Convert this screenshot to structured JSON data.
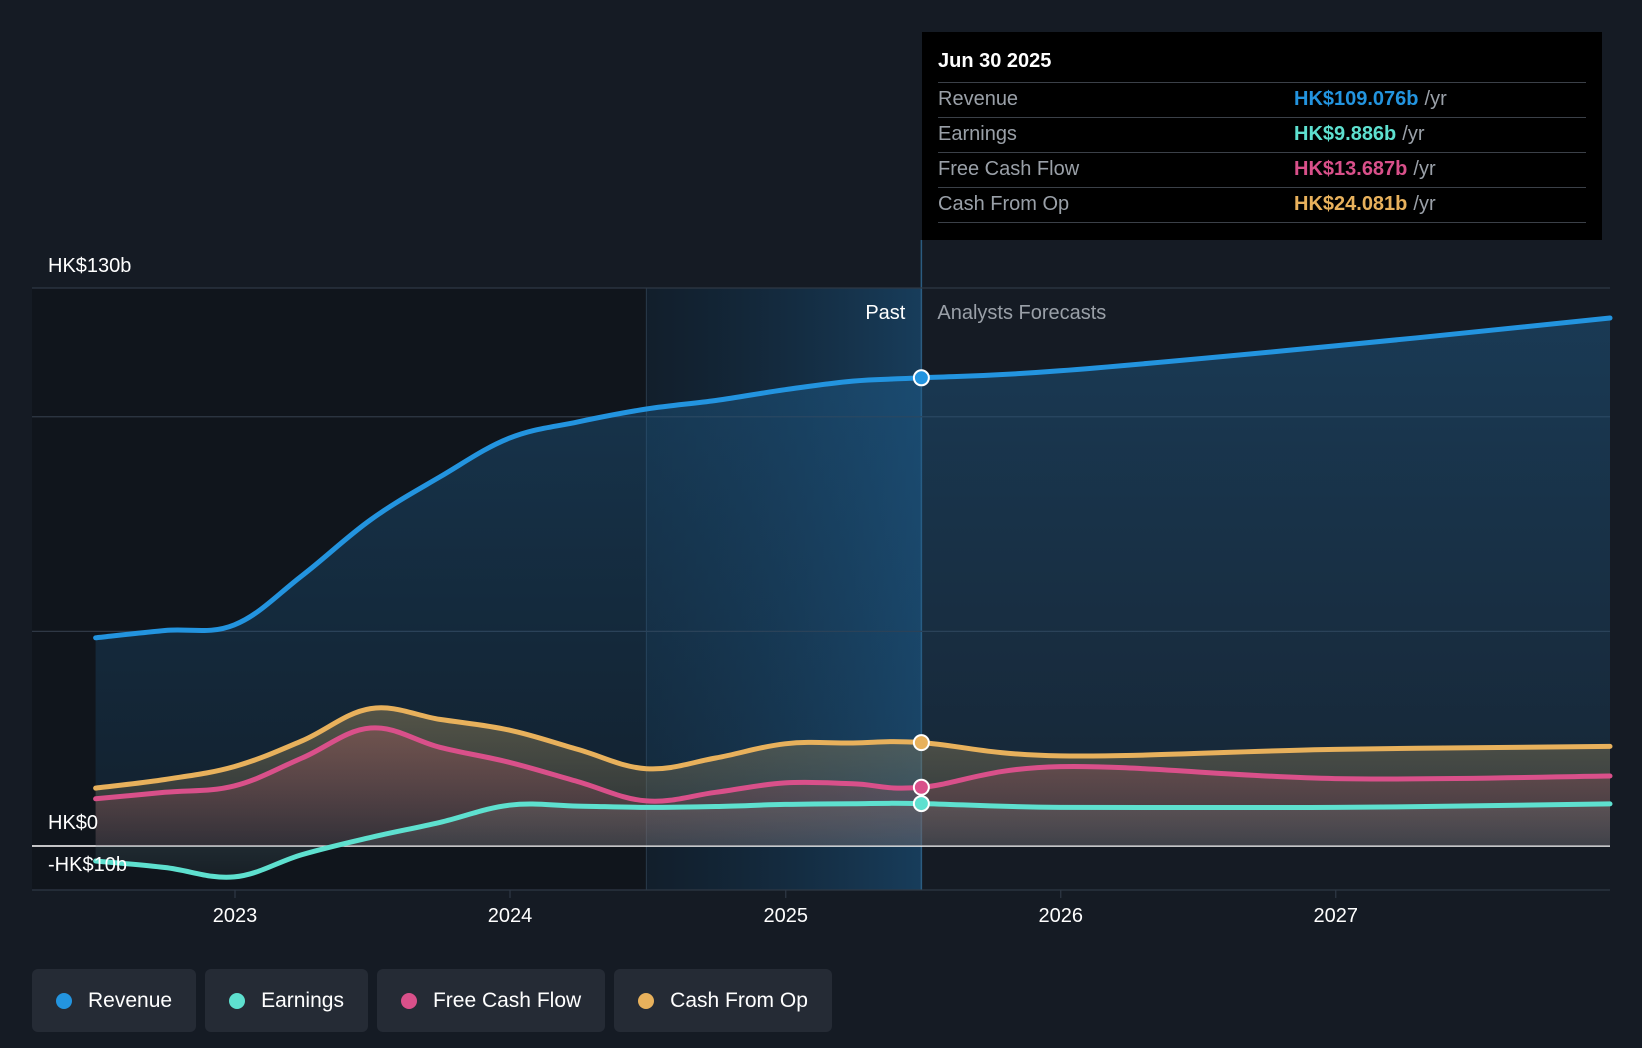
{
  "chart_data": {
    "type": "line",
    "y_unit_labels": {
      "top": "HK$130b",
      "zero": "HK$0",
      "bottom": "-HK$10b"
    },
    "ylim": [
      -10,
      130
    ],
    "x_ticks": [
      "2023",
      "2024",
      "2025",
      "2026",
      "2027"
    ],
    "past_label": "Past",
    "forecast_label": "Analysts Forecasts",
    "past_end_date": "2025-06-30",
    "series": [
      {
        "name": "Revenue",
        "color": "#2394df",
        "points": [
          [
            "2022-06-30",
            48.5
          ],
          [
            "2022-09-30",
            50.2
          ],
          [
            "2022-12-31",
            51.5
          ],
          [
            "2023-03-31",
            63.0
          ],
          [
            "2023-06-30",
            76.0
          ],
          [
            "2023-09-30",
            86.0
          ],
          [
            "2023-12-31",
            95.0
          ],
          [
            "2024-03-31",
            98.8
          ],
          [
            "2024-06-30",
            101.8
          ],
          [
            "2024-09-30",
            103.8
          ],
          [
            "2024-12-31",
            106.3
          ],
          [
            "2025-03-31",
            108.3
          ],
          [
            "2025-06-30",
            109.076
          ],
          [
            "2025-12-31",
            110.7
          ],
          [
            "2026-12-31",
            116.5
          ],
          [
            "2027-12-31",
            123.0
          ]
        ]
      },
      {
        "name": "Earnings",
        "color": "#5ee0cf",
        "points": [
          [
            "2022-06-30",
            -3.5
          ],
          [
            "2022-09-30",
            -5.0
          ],
          [
            "2022-12-31",
            -7.2
          ],
          [
            "2023-03-31",
            -2.0
          ],
          [
            "2023-06-30",
            2.0
          ],
          [
            "2023-09-30",
            5.5
          ],
          [
            "2023-12-31",
            9.5
          ],
          [
            "2024-03-31",
            9.3
          ],
          [
            "2024-06-30",
            9.0
          ],
          [
            "2024-09-30",
            9.2
          ],
          [
            "2024-12-31",
            9.7
          ],
          [
            "2025-03-31",
            9.86
          ],
          [
            "2025-06-30",
            9.886
          ],
          [
            "2025-12-31",
            9.0
          ],
          [
            "2026-12-31",
            9.0
          ],
          [
            "2027-12-31",
            9.8
          ]
        ]
      },
      {
        "name": "Free Cash Flow",
        "color": "#d9508a",
        "points": [
          [
            "2022-06-30",
            11.0
          ],
          [
            "2022-09-30",
            12.5
          ],
          [
            "2022-12-31",
            14.0
          ],
          [
            "2023-03-31",
            20.5
          ],
          [
            "2023-06-30",
            27.5
          ],
          [
            "2023-09-30",
            23.0
          ],
          [
            "2023-12-31",
            19.5
          ],
          [
            "2024-03-31",
            15.0
          ],
          [
            "2024-06-30",
            10.5
          ],
          [
            "2024-09-30",
            12.5
          ],
          [
            "2024-12-31",
            14.7
          ],
          [
            "2025-03-31",
            14.5
          ],
          [
            "2025-06-30",
            13.687
          ],
          [
            "2025-12-31",
            18.5
          ],
          [
            "2026-12-31",
            15.7
          ],
          [
            "2027-12-31",
            16.3
          ]
        ]
      },
      {
        "name": "Cash From Op",
        "color": "#e8b15c",
        "points": [
          [
            "2022-06-30",
            13.5
          ],
          [
            "2022-09-30",
            15.5
          ],
          [
            "2022-12-31",
            18.5
          ],
          [
            "2023-03-31",
            24.5
          ],
          [
            "2023-06-30",
            32.0
          ],
          [
            "2023-09-30",
            29.5
          ],
          [
            "2023-12-31",
            27.0
          ],
          [
            "2024-03-31",
            22.5
          ],
          [
            "2024-06-30",
            18.0
          ],
          [
            "2024-09-30",
            20.5
          ],
          [
            "2024-12-31",
            23.8
          ],
          [
            "2025-03-31",
            24.0
          ],
          [
            "2025-06-30",
            24.081
          ],
          [
            "2025-12-31",
            21.0
          ],
          [
            "2026-12-31",
            22.5
          ],
          [
            "2027-12-31",
            23.2
          ]
        ]
      }
    ]
  },
  "tooltip": {
    "title": "Jun 30 2025",
    "rows": [
      {
        "label": "Revenue",
        "value": "HK$109.076b",
        "unit": "/yr",
        "color": "#2394df"
      },
      {
        "label": "Earnings",
        "value": "HK$9.886b",
        "unit": "/yr",
        "color": "#5ee0cf"
      },
      {
        "label": "Free Cash Flow",
        "value": "HK$13.687b",
        "unit": "/yr",
        "color": "#d9508a"
      },
      {
        "label": "Cash From Op",
        "value": "HK$24.081b",
        "unit": "/yr",
        "color": "#e8b15c"
      }
    ]
  },
  "legend": [
    {
      "label": "Revenue",
      "color": "#2394df"
    },
    {
      "label": "Earnings",
      "color": "#5ee0cf"
    },
    {
      "label": "Free Cash Flow",
      "color": "#d9508a"
    },
    {
      "label": "Cash From Op",
      "color": "#e8b15c"
    }
  ]
}
